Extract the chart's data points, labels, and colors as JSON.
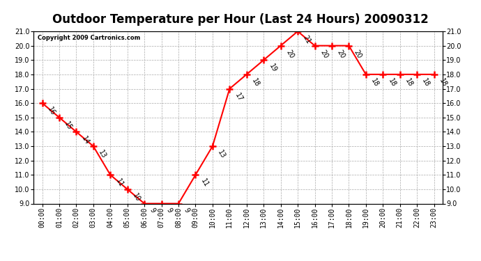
{
  "title": "Outdoor Temperature per Hour (Last 24 Hours) 20090312",
  "copyright": "Copyright 2009 Cartronics.com",
  "hours": [
    "00:00",
    "01:00",
    "02:00",
    "03:00",
    "04:00",
    "05:00",
    "06:00",
    "07:00",
    "08:00",
    "09:00",
    "10:00",
    "11:00",
    "12:00",
    "13:00",
    "14:00",
    "15:00",
    "16:00",
    "17:00",
    "18:00",
    "19:00",
    "20:00",
    "21:00",
    "22:00",
    "23:00"
  ],
  "values": [
    16,
    15,
    14,
    13,
    11,
    10,
    9,
    9,
    9,
    11,
    13,
    17,
    18,
    19,
    20,
    21,
    20,
    20,
    20,
    18,
    18,
    18,
    18,
    18
  ],
  "ylim_min": 9.0,
  "ylim_max": 21.0,
  "yticks": [
    9.0,
    10.0,
    11.0,
    12.0,
    13.0,
    14.0,
    15.0,
    16.0,
    17.0,
    18.0,
    19.0,
    20.0,
    21.0
  ],
  "line_color": "red",
  "marker": "+",
  "marker_size": 7,
  "marker_color": "red",
  "bg_color": "#ffffff",
  "grid_color": "#aaaaaa",
  "title_fontsize": 12,
  "tick_fontsize": 7,
  "annotation_fontsize": 7,
  "annotation_rotation": -60,
  "copyright_fontsize": 6
}
